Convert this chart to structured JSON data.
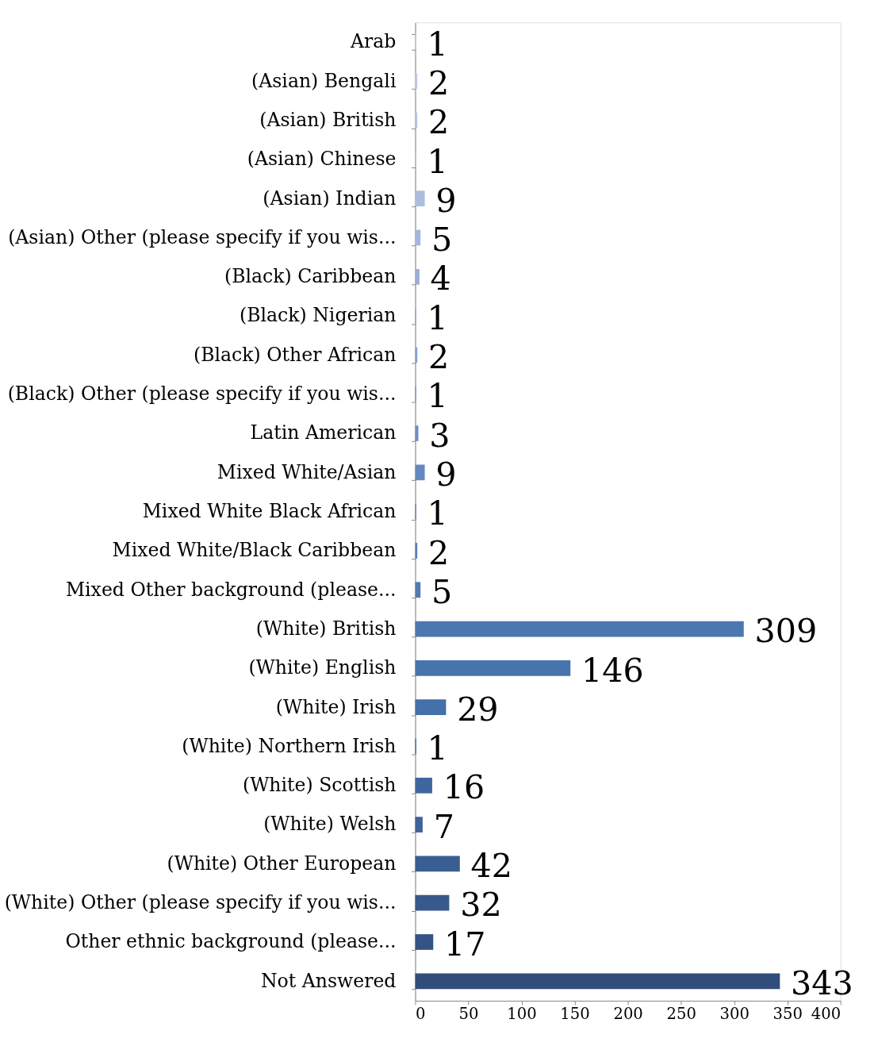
{
  "chart_data": {
    "type": "bar",
    "orientation": "horizontal",
    "categories": [
      "Arab",
      "(Asian) Bengali",
      "(Asian) British",
      "(Asian) Chinese",
      "(Asian) Indian",
      "(Asian) Other (please specify if you wis...",
      "(Black) Caribbean",
      "(Black) Nigerian",
      "(Black) Other African",
      "(Black) Other (please specify if you wis...",
      "Latin American",
      "Mixed White/Asian",
      "Mixed White Black African",
      "Mixed White/Black Caribbean",
      "Mixed Other background (please...",
      "(White) British",
      "(White) English",
      "(White) Irish",
      "(White) Northern Irish",
      "(White) Scottish",
      "(White) Welsh",
      "(White) Other European",
      "(White) Other (please specify if you wis...",
      "Other ethnic background (please...",
      "Not Answered"
    ],
    "values": [
      1,
      2,
      2,
      1,
      9,
      5,
      4,
      1,
      2,
      1,
      3,
      9,
      1,
      2,
      5,
      309,
      146,
      29,
      1,
      16,
      7,
      42,
      32,
      17,
      343
    ],
    "colors": [
      "#c3cde3",
      "#bdc9e1",
      "#b8c5df",
      "#b3c1dd",
      "#adbddb",
      "#a5b7d8",
      "#9caed3",
      "#8fa6cf",
      "#85a0cc",
      "#7a97c7",
      "#6f8ec3",
      "#6688c0",
      "#5e82bc",
      "#5880b9",
      "#527bb6",
      "#4c78b2",
      "#4874ad",
      "#4570a8",
      "#426ca3",
      "#3f679d",
      "#3d6398",
      "#3a5e91",
      "#38598b",
      "#355485",
      "#314d7b"
    ],
    "xlim": [
      0,
      400
    ],
    "xticks": [
      0,
      50,
      100,
      150,
      200,
      250,
      300,
      350,
      400
    ],
    "grid": false,
    "data_labels": true,
    "legend": false
  }
}
